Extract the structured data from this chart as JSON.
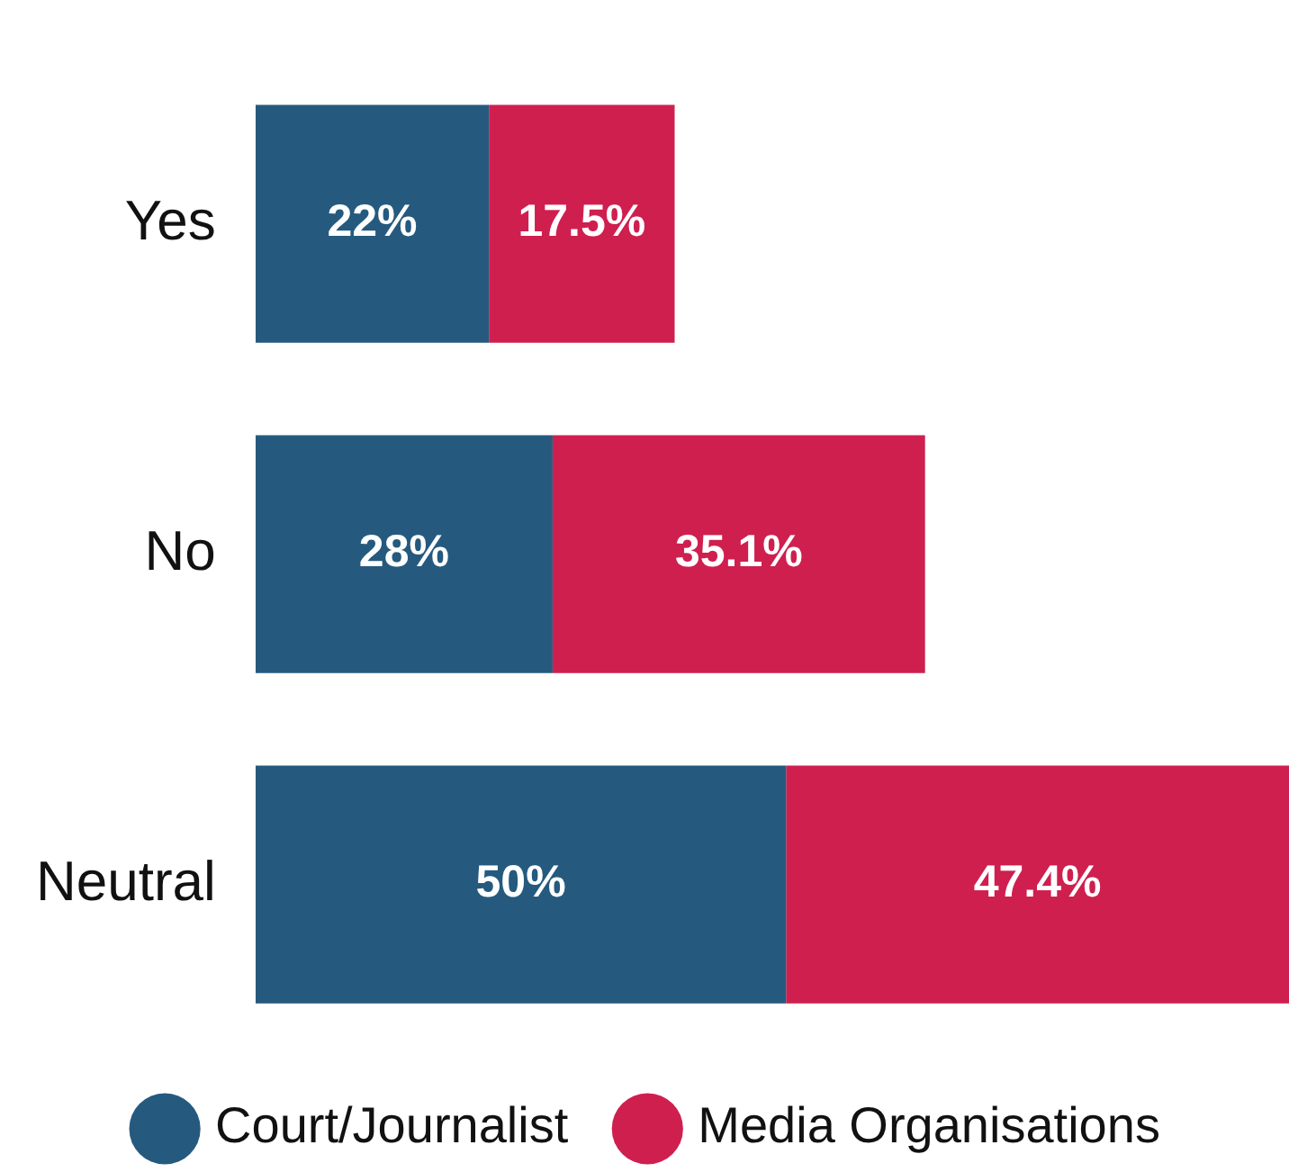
{
  "chart_data": {
    "type": "bar",
    "orientation": "horizontal",
    "stacked": true,
    "categories": [
      "Yes",
      "No",
      "Neutral"
    ],
    "series": [
      {
        "name": "Court/Journalist",
        "color": "#255a7e",
        "values": [
          22,
          28,
          50
        ],
        "value_labels": [
          "22%",
          "28%",
          "50%"
        ]
      },
      {
        "name": "Media Organisations",
        "color": "#cf1f4f",
        "values": [
          17.5,
          35.1,
          47.4
        ],
        "value_labels": [
          "17.5%",
          "35.1%",
          "47.4%"
        ]
      }
    ],
    "legend": "bottom",
    "tick_labels": "y"
  }
}
